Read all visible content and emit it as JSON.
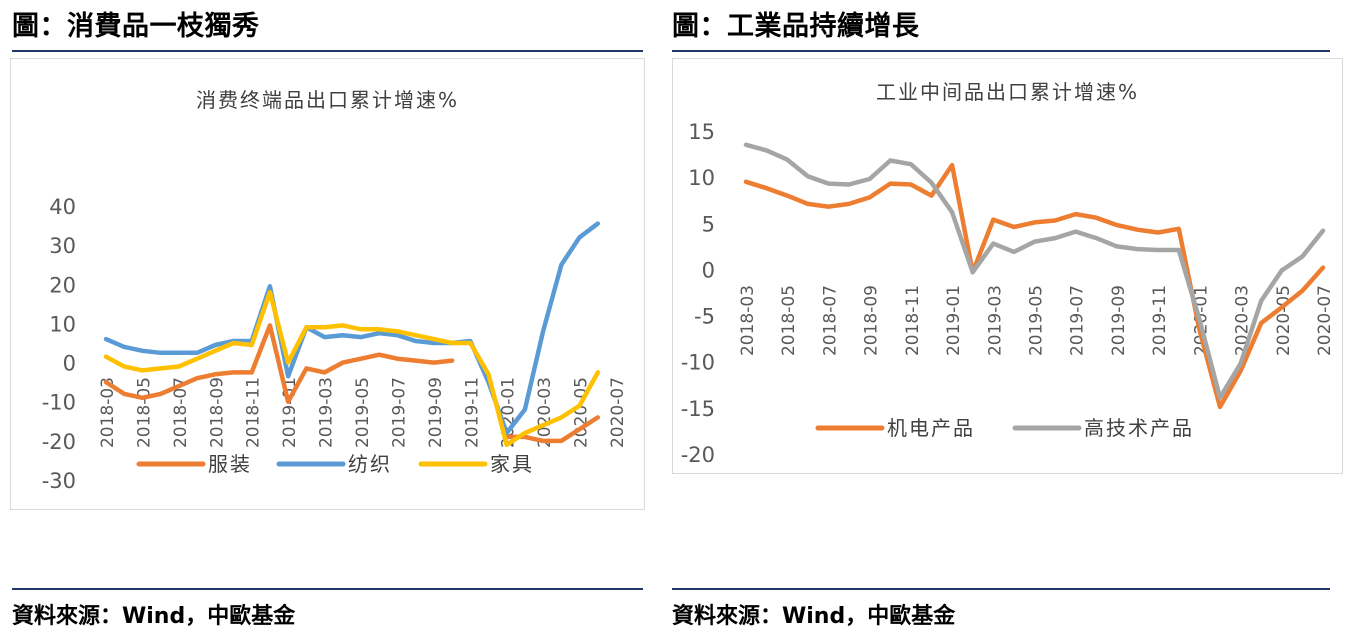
{
  "left": {
    "heading": "圖：消費品一枝獨秀",
    "source": "資料來源：Wind，中歐基金"
  },
  "right": {
    "heading": "圖：工業品持續增長",
    "source": "資料來源：Wind，中歐基金"
  },
  "colors": {
    "orange": "#ed7d31",
    "blue": "#5b9bd5",
    "yellow": "#ffc000",
    "gray": "#a5a5a5",
    "rule": "#1f3864"
  },
  "chart_data": [
    {
      "type": "line",
      "title": "消费终端品出口累计增速%",
      "ylim": [
        -30,
        40
      ],
      "yticks": [
        40,
        30,
        20,
        10,
        0,
        -10,
        -20,
        -30
      ],
      "grid": false,
      "legend_position": "bottom",
      "x": [
        "2018-03",
        "2018-04",
        "2018-05",
        "2018-06",
        "2018-07",
        "2018-08",
        "2018-09",
        "2018-10",
        "2018-11",
        "2018-12",
        "2019-01",
        "2019-02",
        "2019-03",
        "2019-04",
        "2019-05",
        "2019-06",
        "2019-07",
        "2019-08",
        "2019-09",
        "2019-10",
        "2019-11",
        "2019-12",
        "2020-01",
        "2020-02",
        "2020-03",
        "2020-04",
        "2020-05",
        "2020-06",
        "2020-07"
      ],
      "xticklabels": [
        "2018-03",
        "2018-05",
        "2018-07",
        "2018-09",
        "2018-11",
        "2019-01",
        "2019-03",
        "2019-05",
        "2019-07",
        "2019-09",
        "2019-11",
        "2020-01",
        "2020-03",
        "2020-05",
        "2020-07"
      ],
      "series": [
        {
          "name": "服装",
          "color": "#ed7d31",
          "values": [
            -5,
            -8,
            -9,
            -8,
            -6,
            -4,
            -3,
            -2.5,
            -2.5,
            9.5,
            -10,
            -1.5,
            -2.5,
            0,
            1,
            2,
            1,
            0.5,
            0,
            0.5,
            null,
            null,
            -19,
            -19,
            -20,
            -20,
            -17,
            -14,
            null
          ]
        },
        {
          "name": "纺织",
          "color": "#5b9bd5",
          "values": [
            6,
            4,
            3,
            2.5,
            2.5,
            2.5,
            4.5,
            5.5,
            5.5,
            19.5,
            -3.5,
            9,
            6.5,
            7,
            6.5,
            7.5,
            7,
            5.5,
            5,
            5,
            5.5,
            -5,
            -18,
            -12,
            8,
            25,
            32,
            35.5,
            null
          ]
        },
        {
          "name": "家具",
          "color": "#ffc000",
          "values": [
            1.5,
            -1,
            -2,
            -1.5,
            -1,
            1,
            3,
            5,
            4.5,
            18,
            0,
            9,
            9,
            9.5,
            8.5,
            8.5,
            8,
            7,
            6,
            5,
            5,
            -3,
            -21,
            -18,
            -16,
            -14,
            -11,
            -2.5,
            null
          ]
        }
      ]
    },
    {
      "type": "line",
      "title": "工业中间品出口累计增速%",
      "ylim": [
        -20,
        15
      ],
      "yticks": [
        15,
        10,
        5,
        0,
        -5,
        -10,
        -15,
        -20
      ],
      "grid": false,
      "legend_position": "bottom",
      "x": [
        "2018-03",
        "2018-04",
        "2018-05",
        "2018-06",
        "2018-07",
        "2018-08",
        "2018-09",
        "2018-10",
        "2018-11",
        "2018-12",
        "2019-01",
        "2019-02",
        "2019-03",
        "2019-04",
        "2019-05",
        "2019-06",
        "2019-07",
        "2019-08",
        "2019-09",
        "2019-10",
        "2019-11",
        "2019-12",
        "2020-01",
        "2020-02",
        "2020-03",
        "2020-04",
        "2020-05",
        "2020-06",
        "2020-07"
      ],
      "xticklabels": [
        "2018-03",
        "2018-05",
        "2018-07",
        "2018-09",
        "2018-11",
        "2019-01",
        "2019-03",
        "2019-05",
        "2019-07",
        "2019-09",
        "2019-11",
        "2020-01",
        "2020-03",
        "2020-05",
        "2020-07"
      ],
      "series": [
        {
          "name": "机电产品",
          "color": "#ed7d31",
          "values": [
            9.5,
            8.8,
            8,
            7.1,
            6.8,
            7.1,
            7.8,
            9.3,
            9.2,
            8,
            11.3,
            -0.3,
            5.4,
            4.6,
            5.1,
            5.3,
            6,
            5.6,
            4.8,
            4.3,
            4,
            4.4,
            -6.5,
            -14.9,
            -11,
            -5.8,
            -4.1,
            -2.3,
            0.2
          ]
        },
        {
          "name": "高技术产品",
          "color": "#a5a5a5",
          "values": [
            13.5,
            12.9,
            11.9,
            10.1,
            9.3,
            9.2,
            9.8,
            11.8,
            11.4,
            9.4,
            6.2,
            -0.3,
            2.8,
            1.9,
            3,
            3.4,
            4.1,
            3.4,
            2.5,
            2.2,
            2.1,
            2.1,
            -5.4,
            -13.9,
            -10.2,
            -3.4,
            -0.1,
            1.4,
            4.2
          ]
        }
      ]
    }
  ]
}
